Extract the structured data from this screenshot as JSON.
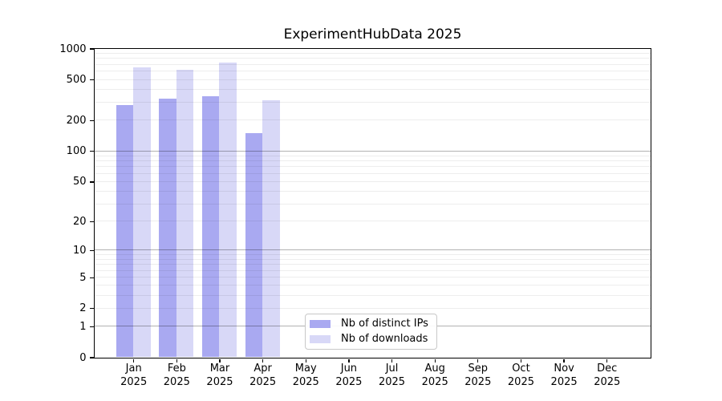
{
  "chart_data": {
    "type": "bar",
    "title": "ExperimentHubData 2025",
    "yscale": "log1p",
    "categories": [
      "Jan",
      "Feb",
      "Mar",
      "Apr",
      "May",
      "Jun",
      "Jul",
      "Aug",
      "Sep",
      "Oct",
      "Nov",
      "Dec"
    ],
    "year_label": "2025",
    "series": [
      {
        "name": "Nb of distinct IPs",
        "color": "#a9a9f1",
        "values": [
          280,
          325,
          340,
          150,
          0,
          0,
          0,
          0,
          0,
          0,
          0,
          0
        ]
      },
      {
        "name": "Nb of downloads",
        "color": "#d8d8f7",
        "values": [
          660,
          620,
          735,
          315,
          0,
          0,
          0,
          0,
          0,
          0,
          0,
          0
        ]
      }
    ],
    "y_ticks": [
      0,
      1,
      2,
      5,
      10,
      20,
      50,
      100,
      200,
      500,
      1000
    ],
    "ylim": [
      0,
      1000
    ],
    "xlabel": "",
    "ylabel": "",
    "grid": "horizontal log minor+major gridlines",
    "legend_position": "inside lower-center-left",
    "colors": {
      "spine": "#000000",
      "major_grid": "rgba(0,0,0,0.30)",
      "minor_grid": "rgba(0,0,0,0.07)",
      "legend_border": "#c8c8c8",
      "background": "#ffffff"
    }
  }
}
